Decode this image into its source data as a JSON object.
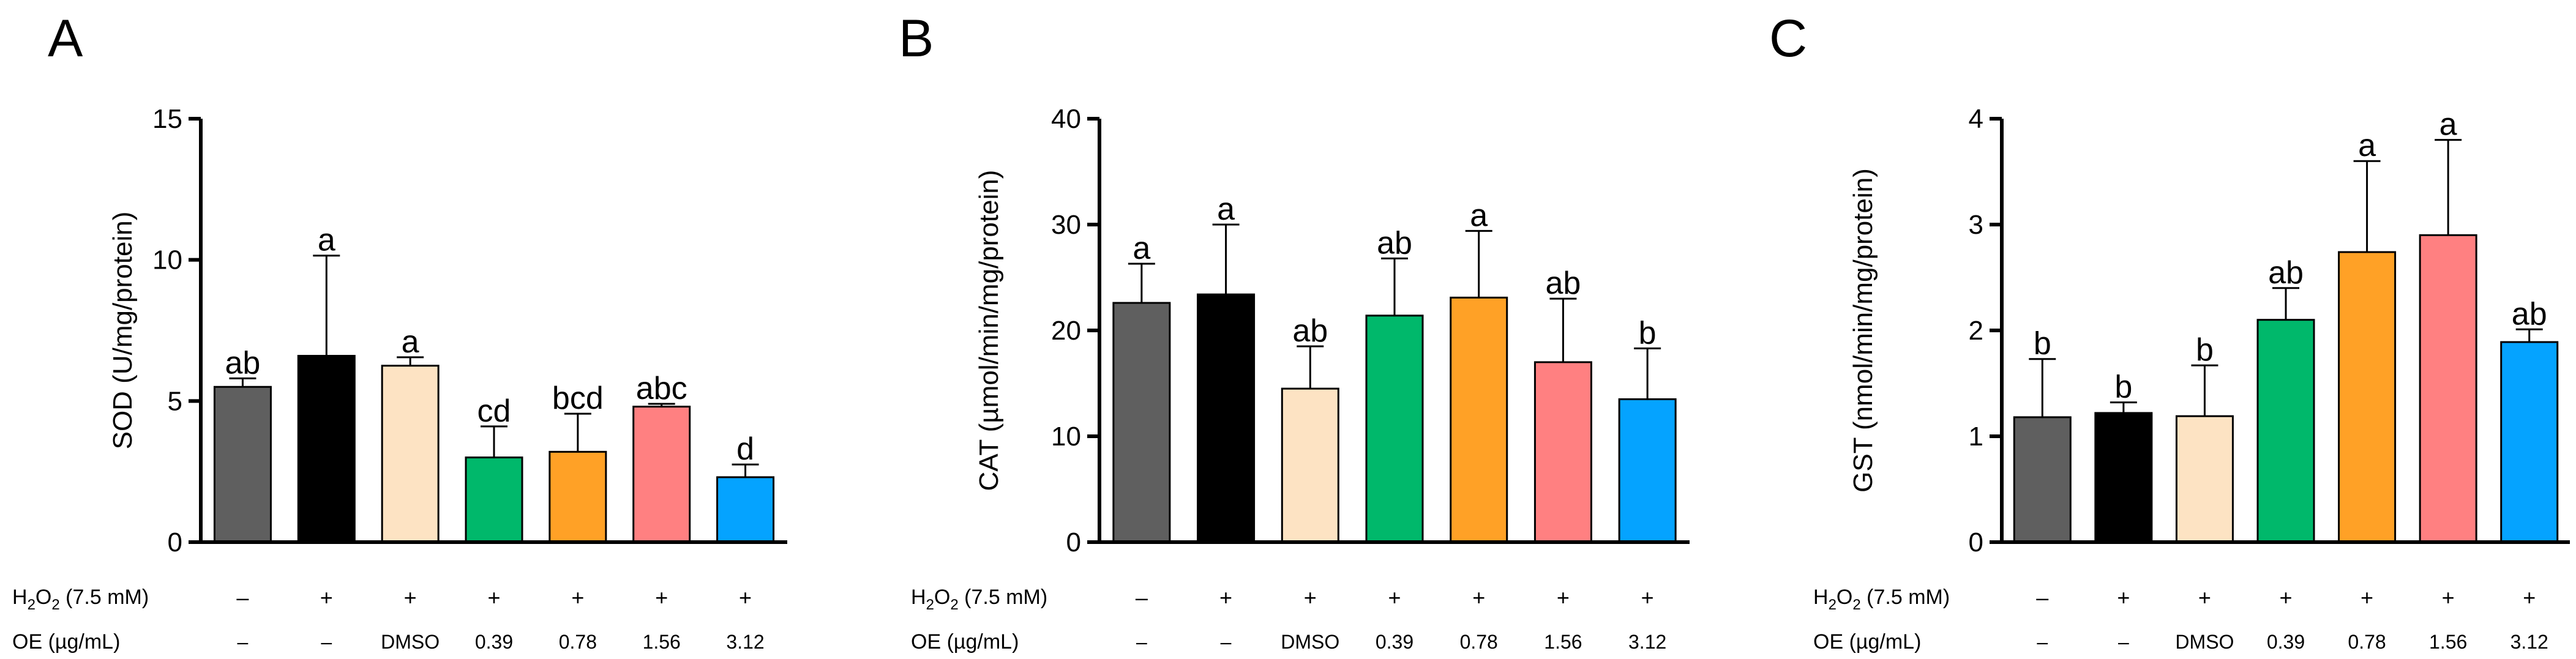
{
  "chart_data": [
    {
      "panel": "A",
      "type": "bar",
      "ylabel": "SOD (U/mg/protein)",
      "ylim": [
        0,
        15
      ],
      "yticks": [
        "0",
        "5",
        "10",
        "15"
      ],
      "yticks_values": [
        0,
        5,
        10,
        15
      ],
      "values": [
        5.5,
        6.6,
        6.25,
        3.0,
        3.2,
        4.8,
        2.3
      ],
      "errors": [
        0.3,
        3.55,
        0.3,
        1.1,
        1.35,
        0.1,
        0.45
      ],
      "letters": [
        "ab",
        "a",
        "a",
        "cd",
        "bcd",
        "abc",
        "d"
      ],
      "grid": false
    },
    {
      "panel": "B",
      "type": "bar",
      "ylabel": "CAT (µmol/min/mg/protein)",
      "ylim": [
        0,
        40
      ],
      "yticks": [
        "0",
        "10",
        "20",
        "30",
        "40"
      ],
      "yticks_values": [
        0,
        10,
        20,
        30,
        40
      ],
      "values": [
        22.6,
        23.4,
        14.5,
        21.4,
        23.1,
        17.0,
        13.5
      ],
      "errors": [
        3.7,
        6.6,
        4.0,
        5.4,
        6.3,
        6.0,
        4.8
      ],
      "letters": [
        "a",
        "a",
        "ab",
        "ab",
        "a",
        "ab",
        "b"
      ],
      "grid": false
    },
    {
      "panel": "C",
      "type": "bar",
      "ylabel": "GST (nmol/min/mg/protein)",
      "ylim": [
        0,
        4
      ],
      "yticks": [
        "0",
        "1",
        "2",
        "3",
        "4"
      ],
      "yticks_values": [
        0,
        1,
        2,
        3,
        4
      ],
      "values": [
        1.18,
        1.22,
        1.19,
        2.1,
        2.74,
        2.9,
        1.89
      ],
      "errors": [
        0.55,
        0.1,
        0.48,
        0.3,
        0.86,
        0.9,
        0.12
      ],
      "letters": [
        "b",
        "b",
        "b",
        "ab",
        "a",
        "a",
        "ab"
      ],
      "grid": false
    }
  ],
  "groups": {
    "colors": [
      "#5f5f5f",
      "#000000",
      "#fde3c3",
      "#00b86b",
      "#ffa126",
      "#ff8081",
      "#05a3ff"
    ],
    "h2o2_row_label": "H2O2 (7.5 mM)",
    "h2o2_label_parts": {
      "base": "H",
      "sub1": "2",
      "mid": "O",
      "sub2": "2",
      "rest": " (7.5 mM)"
    },
    "oe_row_label": "OE (µg/mL)",
    "h2o2": [
      "–",
      "+",
      "+",
      "+",
      "+",
      "+",
      "+"
    ],
    "oe": [
      "–",
      "–",
      "DMSO",
      "0.39",
      "0.78",
      "1.56",
      "3.12"
    ]
  }
}
